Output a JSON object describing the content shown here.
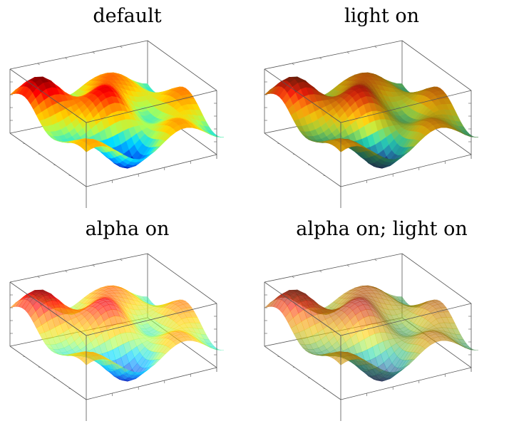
{
  "panels": [
    {
      "title": "default",
      "lighting": false,
      "transparent": false
    },
    {
      "title": "light on",
      "lighting": true,
      "transparent": false
    },
    {
      "title": "alpha on",
      "lighting": false,
      "transparent": true
    },
    {
      "title": "alpha on; light on",
      "lighting": true,
      "transparent": true
    }
  ],
  "colormap": [
    "#7f0000",
    "#ff0000",
    "#ff8000",
    "#ffd700",
    "#aaff55",
    "#00e0ff",
    "#0080ff",
    "#0000aa"
  ]
}
